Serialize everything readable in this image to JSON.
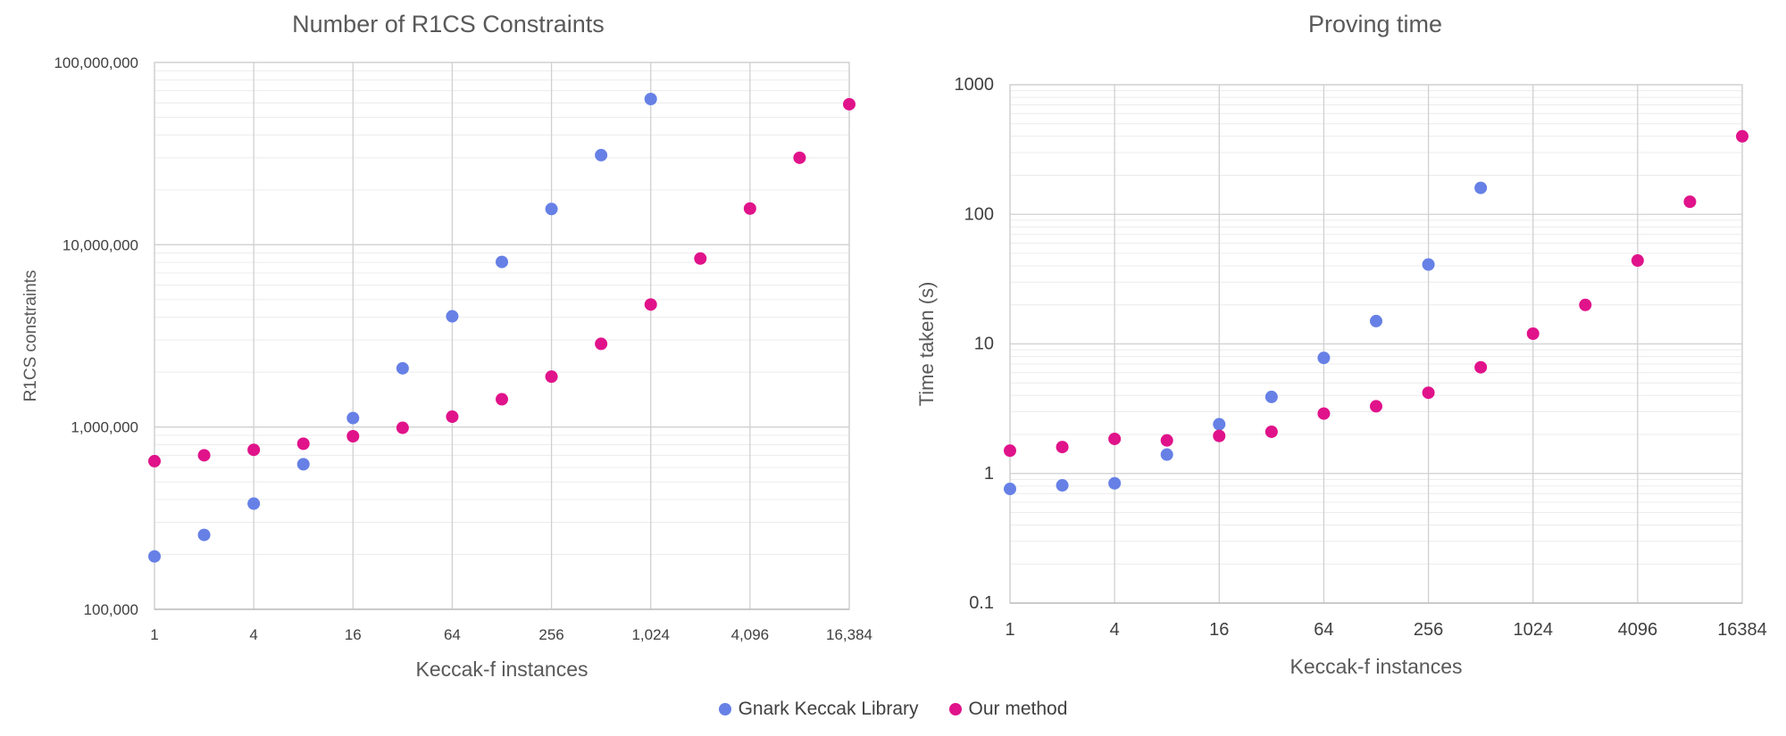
{
  "chart_data": [
    {
      "type": "scatter",
      "title": "Number of R1CS Constraints",
      "xlabel": "Keccak-f instances",
      "ylabel": "R1CS constraints",
      "x_scale": "log2",
      "y_scale": "log10",
      "xlim": [
        1,
        16384
      ],
      "ylim": [
        100000,
        100000000
      ],
      "x_ticks": [
        1,
        4,
        16,
        64,
        256,
        1024,
        4096,
        16384
      ],
      "x_tick_labels": [
        "1",
        "4",
        "16",
        "64",
        "256",
        "1,024",
        "4,096",
        "16,384"
      ],
      "y_ticks": [
        100000,
        1000000,
        10000000,
        100000000
      ],
      "y_tick_labels": [
        "100,000",
        "1,000,000",
        "10,000,000",
        "100,000,000"
      ],
      "grid": true,
      "series": [
        {
          "name": "Gnark Keccak Library",
          "color": "#6680e6",
          "x": [
            1,
            2,
            4,
            8,
            16,
            32,
            64,
            128,
            256,
            512,
            1024
          ],
          "y": [
            195000,
            256000,
            380000,
            625000,
            1120000,
            2100000,
            4050000,
            8050000,
            15700000,
            31000000,
            63000000
          ]
        },
        {
          "name": "Our method",
          "color": "#e0138a",
          "x": [
            1,
            2,
            4,
            8,
            16,
            32,
            64,
            128,
            256,
            512,
            1024,
            2048,
            4096,
            8192,
            16384
          ],
          "y": [
            650000,
            700000,
            750000,
            810000,
            890000,
            990000,
            1140000,
            1420000,
            1890000,
            2860000,
            4700000,
            8400000,
            15800000,
            30000000,
            59000000
          ]
        }
      ]
    },
    {
      "type": "scatter",
      "title": "Proving time",
      "xlabel": "Keccak-f instances",
      "ylabel": "Time taken (s)",
      "x_scale": "log2",
      "y_scale": "log10",
      "xlim": [
        1,
        16384
      ],
      "ylim": [
        0.1,
        1000
      ],
      "x_ticks": [
        1,
        4,
        16,
        64,
        256,
        1024,
        4096,
        16384
      ],
      "x_tick_labels": [
        "1",
        "4",
        "16",
        "64",
        "256",
        "1024",
        "4096",
        "16384"
      ],
      "y_ticks": [
        0.1,
        1,
        10,
        100,
        1000
      ],
      "y_tick_labels": [
        "0.1",
        "1",
        "10",
        "100",
        "1000"
      ],
      "grid": true,
      "series": [
        {
          "name": "Gnark Keccak Library",
          "color": "#6680e6",
          "x": [
            1,
            2,
            4,
            8,
            16,
            32,
            64,
            128,
            256,
            512
          ],
          "y": [
            0.76,
            0.81,
            0.84,
            1.4,
            2.4,
            3.9,
            7.8,
            15,
            41,
            160
          ]
        },
        {
          "name": "Our method",
          "color": "#e0138a",
          "x": [
            1,
            2,
            4,
            8,
            16,
            32,
            64,
            128,
            256,
            512,
            1024,
            2048,
            4096,
            8192,
            16384
          ],
          "y": [
            1.5,
            1.6,
            1.85,
            1.8,
            1.95,
            2.1,
            2.9,
            3.3,
            4.2,
            6.6,
            12,
            20,
            44,
            125,
            400
          ]
        }
      ]
    }
  ],
  "legend": {
    "placement": "bottom-center",
    "items": [
      {
        "label": "Gnark Keccak Library",
        "color": "#6680e6"
      },
      {
        "label": "Our method",
        "color": "#e0138a"
      }
    ]
  }
}
